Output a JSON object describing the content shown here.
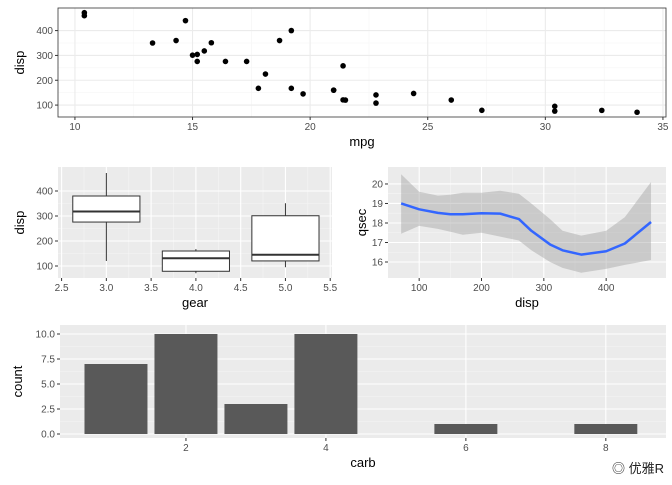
{
  "chart_data": [
    {
      "type": "scatter",
      "xlabel": "mpg",
      "ylabel": "disp",
      "xlim": [
        9.28,
        35.13
      ],
      "ylim": [
        52,
        491
      ],
      "xticks": [
        10,
        15,
        20,
        25,
        30,
        35
      ],
      "yticks": [
        100,
        200,
        300,
        400
      ],
      "theme": "bw",
      "grid": true,
      "points": [
        [
          21.0,
          160
        ],
        [
          21.0,
          160
        ],
        [
          22.8,
          108
        ],
        [
          21.4,
          258
        ],
        [
          18.7,
          360
        ],
        [
          18.1,
          225
        ],
        [
          14.3,
          360
        ],
        [
          24.4,
          146.7
        ],
        [
          22.8,
          140.8
        ],
        [
          19.2,
          167.6
        ],
        [
          17.8,
          167.6
        ],
        [
          16.4,
          275.8
        ],
        [
          17.3,
          275.8
        ],
        [
          15.2,
          275.8
        ],
        [
          10.4,
          472
        ],
        [
          10.4,
          460
        ],
        [
          14.7,
          440
        ],
        [
          32.4,
          78.7
        ],
        [
          30.4,
          75.7
        ],
        [
          33.9,
          71.1
        ],
        [
          21.5,
          120.1
        ],
        [
          15.5,
          318
        ],
        [
          15.2,
          304
        ],
        [
          13.3,
          350
        ],
        [
          19.2,
          400
        ],
        [
          27.3,
          79
        ],
        [
          26.0,
          120.3
        ],
        [
          30.4,
          95.1
        ],
        [
          15.8,
          351
        ],
        [
          19.7,
          145
        ],
        [
          15.0,
          301
        ],
        [
          21.4,
          121
        ]
      ]
    },
    {
      "type": "box",
      "xlabel": "gear",
      "ylabel": "disp",
      "xlim": [
        2.46,
        5.52
      ],
      "ylim": [
        52,
        496
      ],
      "xticks": [
        "2.5",
        "3.0",
        "3.5",
        "4.0",
        "4.5",
        "5.0",
        "5.5"
      ],
      "yticks": [
        100,
        200,
        300,
        400
      ],
      "theme": "grey",
      "grid": true,
      "boxes": [
        {
          "x": 3,
          "min": 120.1,
          "q1": 275.8,
          "median": 318,
          "q3": 380,
          "max": 472
        },
        {
          "x": 4,
          "min": 71.1,
          "q1": 78.9,
          "median": 130.9,
          "q3": 160,
          "max": 167.6
        },
        {
          "x": 5,
          "min": 95.1,
          "q1": 120.3,
          "median": 145,
          "q3": 301,
          "max": 351
        }
      ]
    },
    {
      "type": "line",
      "xlabel": "disp",
      "ylabel": "qsec",
      "xlim": [
        50,
        496
      ],
      "ylim": [
        15.18,
        20.87
      ],
      "xticks": [
        100,
        200,
        300,
        400
      ],
      "yticks": [
        16,
        17,
        18,
        19,
        20
      ],
      "theme": "grey",
      "grid": true,
      "line_color": "#3366FF",
      "band_color": "#999999",
      "smooth": {
        "x": [
          71.1,
          100,
          130,
          150,
          170,
          200,
          230,
          260,
          280,
          310,
          330,
          360,
          400,
          430,
          472
        ],
        "y": [
          19.0,
          18.7,
          18.52,
          18.45,
          18.45,
          18.5,
          18.48,
          18.2,
          17.6,
          16.9,
          16.6,
          16.38,
          16.55,
          16.95,
          18.05
        ],
        "upper": [
          20.5,
          19.6,
          19.4,
          19.45,
          19.55,
          19.55,
          19.65,
          19.5,
          19.0,
          18.2,
          17.6,
          17.35,
          17.6,
          18.3,
          20.1
        ],
        "lower": [
          17.45,
          17.85,
          17.7,
          17.55,
          17.4,
          17.5,
          17.3,
          17.1,
          16.6,
          16.0,
          15.7,
          15.45,
          15.65,
          15.85,
          16.1
        ]
      }
    },
    {
      "type": "bar",
      "xlabel": "carb",
      "ylabel": "count",
      "xlim": [
        0.2,
        8.86
      ],
      "ylim": [
        -0.4,
        10.9
      ],
      "xticks": [
        2,
        4,
        6,
        8
      ],
      "yticks": [
        "0.0",
        "2.5",
        "5.0",
        "7.5",
        "10.0"
      ],
      "theme": "grey",
      "grid": true,
      "bar_color": "#595959",
      "categories": [
        1,
        2,
        3,
        4,
        6,
        8
      ],
      "values": [
        7,
        10,
        3,
        10,
        1,
        1
      ]
    }
  ],
  "watermark": "优雅R"
}
